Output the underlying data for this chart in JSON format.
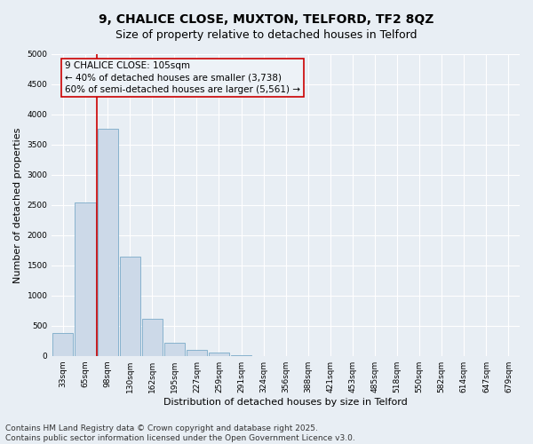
{
  "title_line1": "9, CHALICE CLOSE, MUXTON, TELFORD, TF2 8QZ",
  "title_line2": "Size of property relative to detached houses in Telford",
  "xlabel": "Distribution of detached houses by size in Telford",
  "ylabel": "Number of detached properties",
  "categories": [
    "33sqm",
    "65sqm",
    "98sqm",
    "130sqm",
    "162sqm",
    "195sqm",
    "227sqm",
    "259sqm",
    "291sqm",
    "324sqm",
    "356sqm",
    "388sqm",
    "421sqm",
    "453sqm",
    "485sqm",
    "518sqm",
    "550sqm",
    "582sqm",
    "614sqm",
    "647sqm",
    "679sqm"
  ],
  "values": [
    380,
    2540,
    3760,
    1650,
    620,
    220,
    100,
    50,
    10,
    2,
    0,
    0,
    0,
    0,
    0,
    0,
    0,
    0,
    0,
    0,
    0
  ],
  "bar_color": "#ccd9e8",
  "bar_edge_color": "#7aaac8",
  "vline_color": "#cc0000",
  "vline_index": 2,
  "annotation_text": "9 CHALICE CLOSE: 105sqm\n← 40% of detached houses are smaller (3,738)\n60% of semi-detached houses are larger (5,561) →",
  "annotation_box_color": "#cc0000",
  "annotation_bg": "#edf2f7",
  "ylim": [
    0,
    5000
  ],
  "yticks": [
    0,
    500,
    1000,
    1500,
    2000,
    2500,
    3000,
    3500,
    4000,
    4500,
    5000
  ],
  "background_color": "#e8eef4",
  "grid_color": "#ffffff",
  "footer_line1": "Contains HM Land Registry data © Crown copyright and database right 2025.",
  "footer_line2": "Contains public sector information licensed under the Open Government Licence v3.0.",
  "title_fontsize": 10,
  "subtitle_fontsize": 9,
  "axis_label_fontsize": 8,
  "tick_fontsize": 6.5,
  "annotation_fontsize": 7.5,
  "footer_fontsize": 6.5
}
